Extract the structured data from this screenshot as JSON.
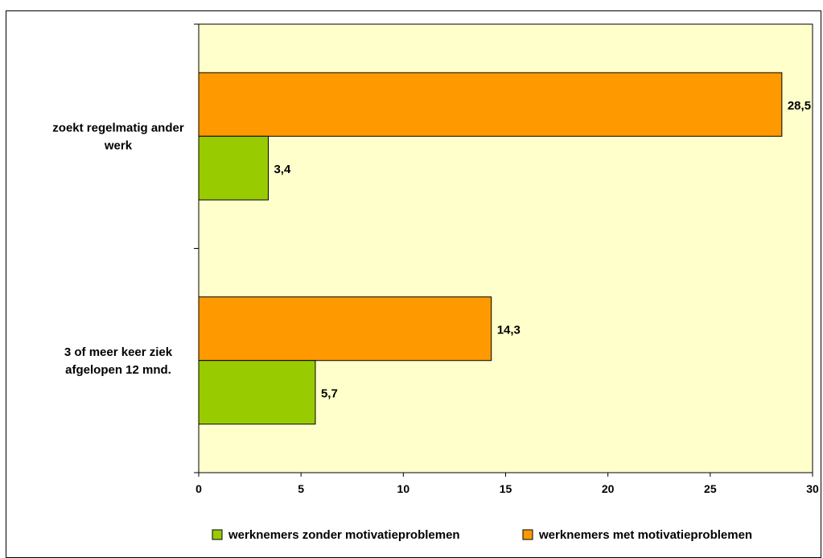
{
  "chart_data": {
    "type": "bar",
    "orientation": "horizontal",
    "categories": [
      [
        "zoekt regelmatig ander",
        "werk"
      ],
      [
        "3 of meer keer ziek",
        "afgelopen 12 mnd."
      ]
    ],
    "series": [
      {
        "name": "werknemers zonder motivatieproblemen",
        "values": [
          3.4,
          5.7
        ],
        "labels": [
          "3,4",
          "5,7"
        ],
        "color": "#99cc00"
      },
      {
        "name": "werknemers met motivatieproblemen",
        "values": [
          28.5,
          14.3
        ],
        "labels": [
          "28,5",
          "14,3"
        ],
        "color": "#ff9900"
      }
    ],
    "xlim": [
      0,
      30
    ],
    "xticks": [
      0,
      5,
      10,
      15,
      20,
      25,
      30
    ],
    "plot_background": "#ffffcc",
    "legend_position": "bottom",
    "grid": false
  }
}
